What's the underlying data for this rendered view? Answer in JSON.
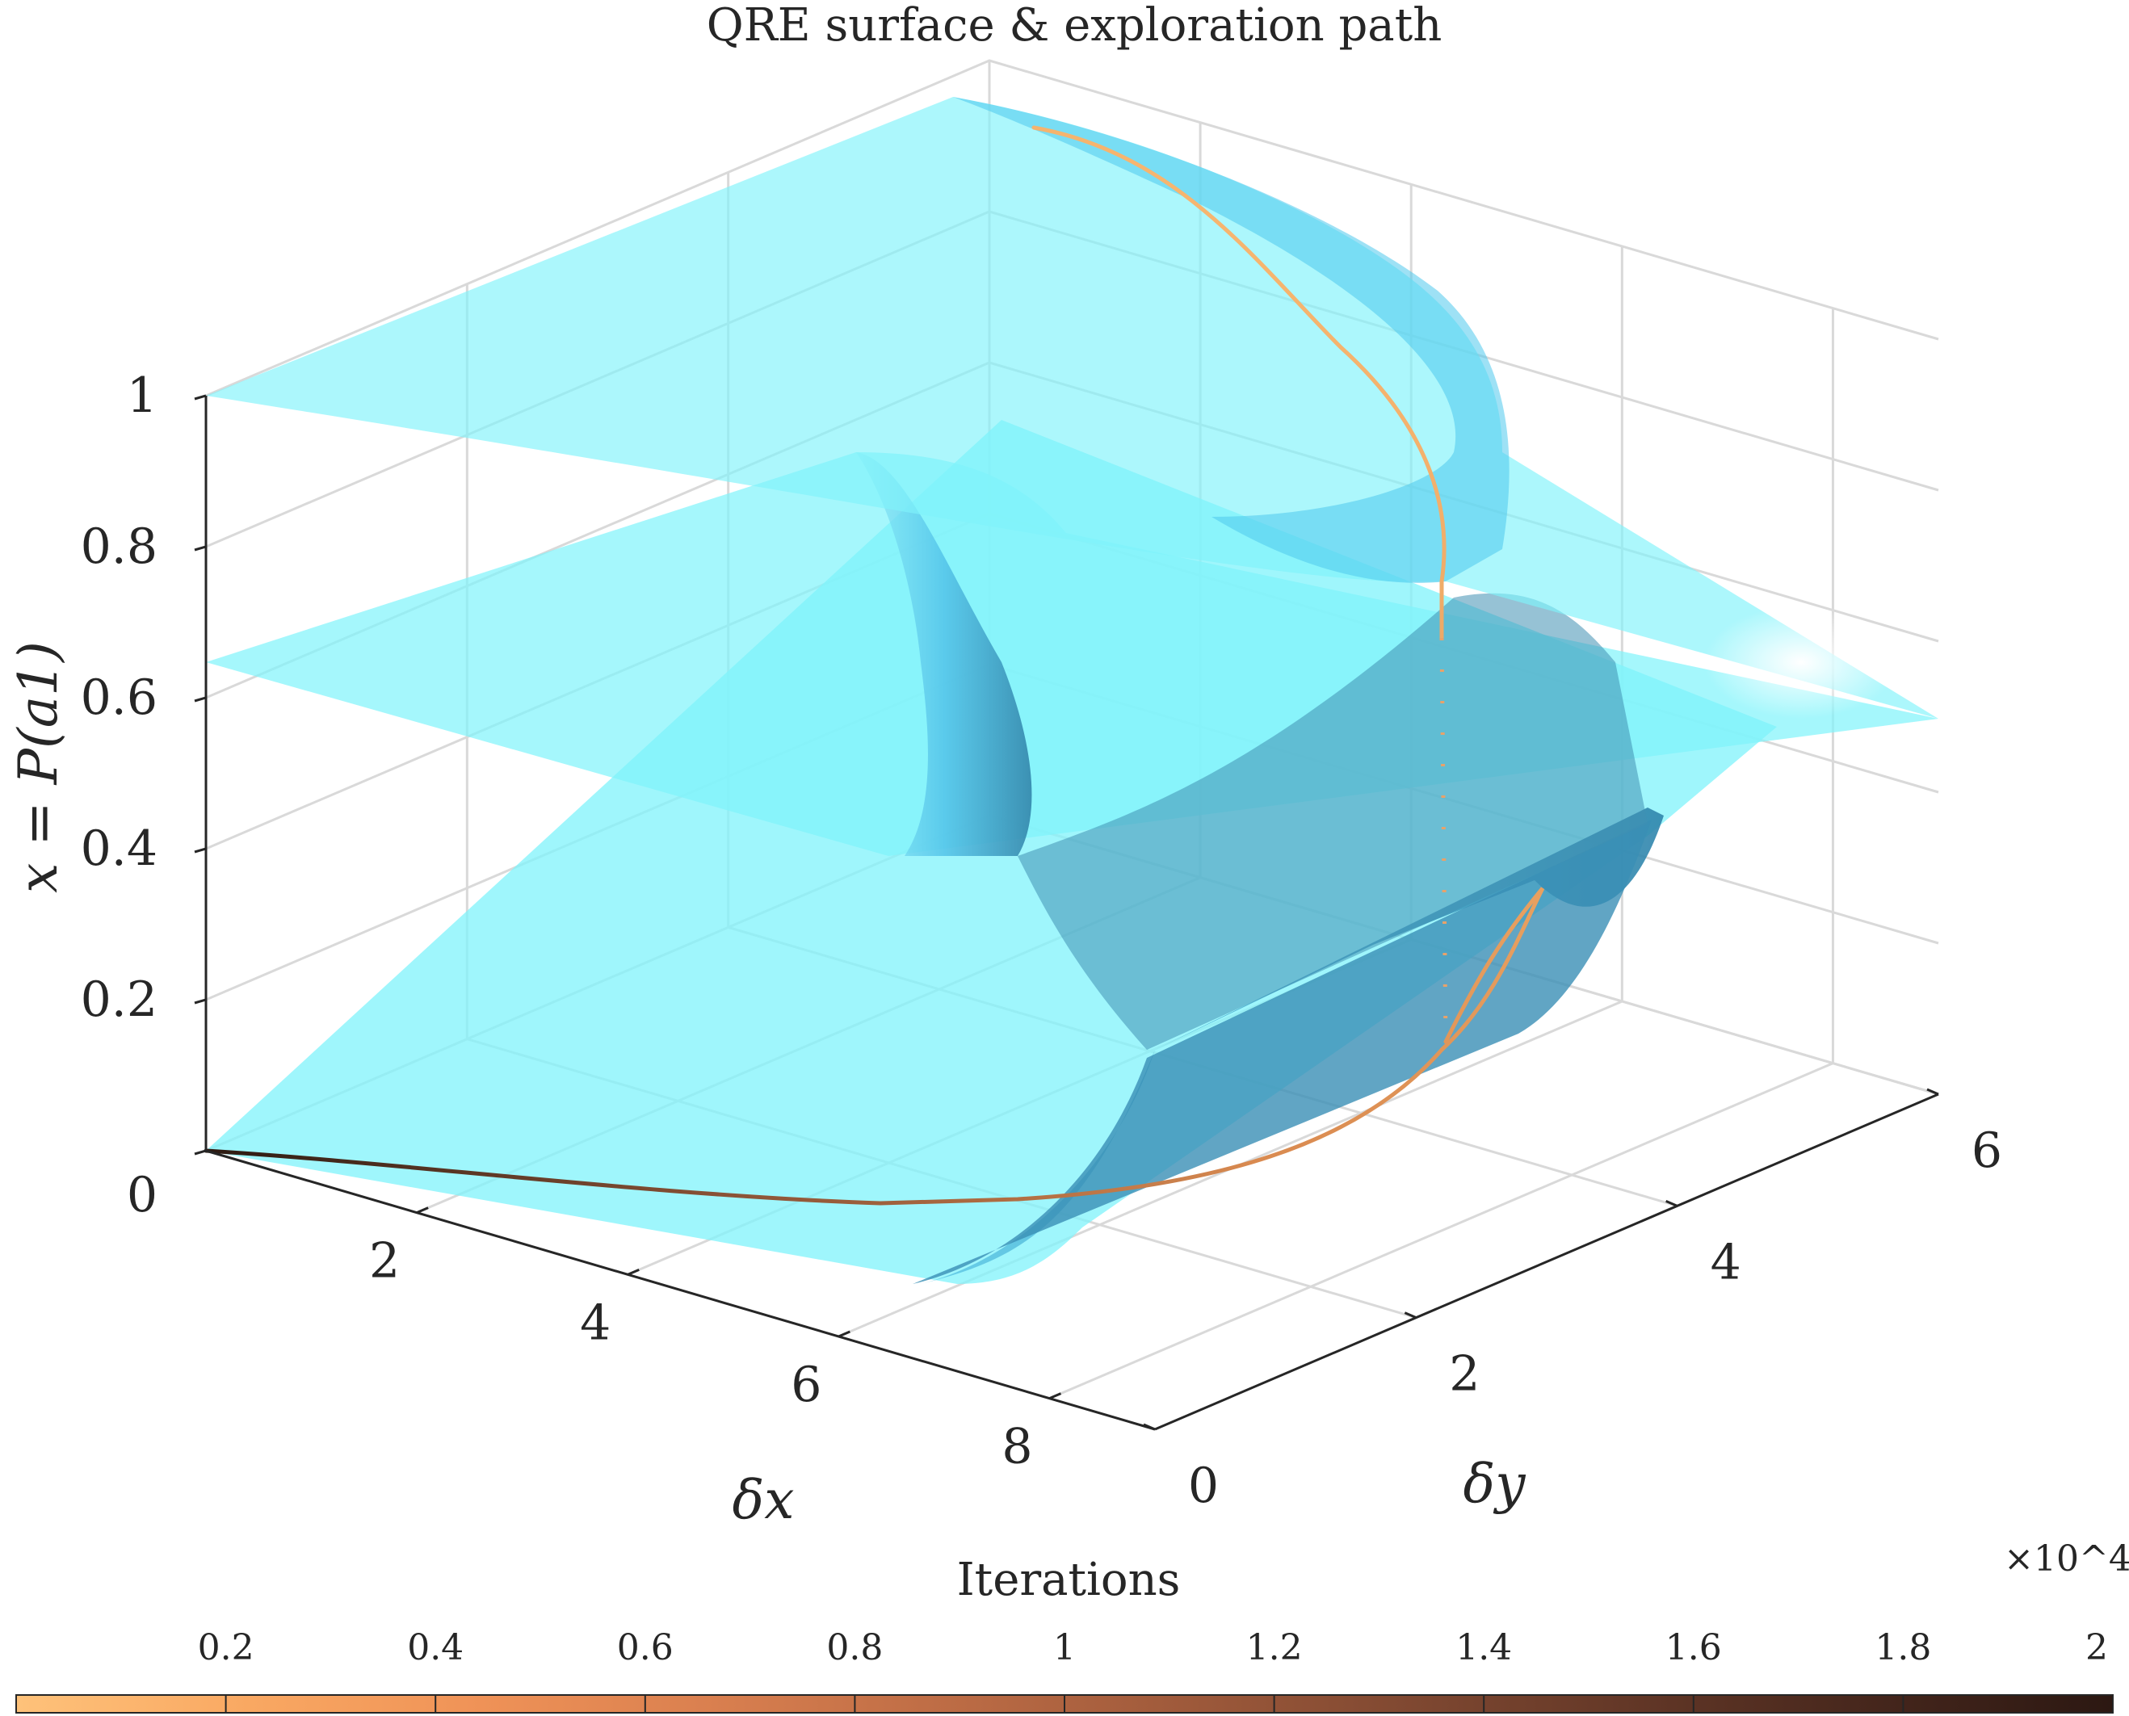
{
  "chart_data": {
    "type": "surface3d",
    "title": "QRE surface & exploration path",
    "xlabel": "δx",
    "ylabel": "δy",
    "zlabel": "x = P(a1)",
    "x_ticks": [
      "2",
      "4",
      "6",
      "8"
    ],
    "y_ticks": [
      "0",
      "2",
      "4",
      "6"
    ],
    "z_ticks": [
      "0",
      "0.2",
      "0.4",
      "0.6",
      "0.8",
      "1"
    ],
    "xlim": [
      0,
      9
    ],
    "ylim": [
      0,
      6
    ],
    "zlim": [
      0,
      1
    ],
    "grid": true,
    "surface_color": "#7ff3fb",
    "surface_shadow_color": "#3a8fb5",
    "path": {
      "color_start": "#f6b56f",
      "color_end": "#2b1a12",
      "points": [
        {
          "dx": 0.0,
          "dy": 0.0,
          "x": 0.0
        },
        {
          "dx": 2.0,
          "dy": 0.6,
          "x": 0.0
        },
        {
          "dx": 4.0,
          "dy": 1.2,
          "x": 0.0
        },
        {
          "dx": 5.6,
          "dy": 1.6,
          "x": 0.01
        },
        {
          "dx": 6.6,
          "dy": 2.2,
          "x": 0.03
        },
        {
          "dx": 7.2,
          "dy": 2.8,
          "x": 0.08
        },
        {
          "dx": 7.6,
          "dy": 3.3,
          "x": 0.16
        },
        {
          "dx": 7.8,
          "dy": 3.7,
          "x": 0.28
        },
        {
          "dx": 7.4,
          "dy": 3.6,
          "x": 0.2
        },
        {
          "dx": 7.0,
          "dy": 3.4,
          "x": 0.11
        },
        {
          "dx": 6.6,
          "dy": 3.2,
          "x": 0.55
        },
        {
          "dx": 6.4,
          "dy": 3.1,
          "x": 0.69
        },
        {
          "dx": 5.6,
          "dy": 3.3,
          "x": 0.82
        },
        {
          "dx": 4.0,
          "dy": 3.8,
          "x": 0.94
        },
        {
          "dx": 2.4,
          "dy": 4.4,
          "x": 0.99
        },
        {
          "dx": 0.4,
          "dy": 5.0,
          "x": 1.0
        }
      ]
    },
    "colorbar": {
      "label": "Iterations",
      "multiplier": "×10^4",
      "ticks": [
        "0.2",
        "0.4",
        "0.6",
        "0.8",
        "1",
        "1.2",
        "1.4",
        "1.6",
        "1.8",
        "2"
      ],
      "range": [
        0,
        2
      ],
      "colors": [
        "#fec27a",
        "#f9a862",
        "#ef9257",
        "#d97f4f",
        "#bd6c45",
        "#9f5a3b",
        "#7f4831",
        "#613626",
        "#45261c",
        "#2c1812"
      ]
    }
  }
}
